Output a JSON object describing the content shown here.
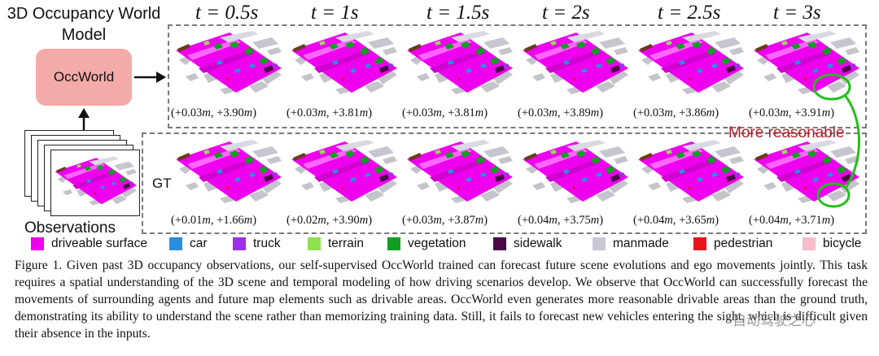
{
  "model": {
    "title": "3D Occupancy World Model",
    "box_label": "OccWorld"
  },
  "time_labels": [
    "t = 0.5s",
    "t = 1s",
    "t = 1.5s",
    "t = 2s",
    "t = 2.5s",
    "t = 3s"
  ],
  "prediction_coords": [
    {
      "x": "+0.03",
      "y": "+3.90"
    },
    {
      "x": "+0.03",
      "y": "+3.81"
    },
    {
      "x": "+0.03",
      "y": "+3.81"
    },
    {
      "x": "+0.03",
      "y": "+3.89"
    },
    {
      "x": "+0.03",
      "y": "+3.86"
    },
    {
      "x": "+0.03",
      "y": "+3.91"
    }
  ],
  "gt_coords": [
    {
      "x": "+0.01",
      "y": "+1.66"
    },
    {
      "x": "+0.02",
      "y": "+3.90"
    },
    {
      "x": "+0.03",
      "y": "+3.87"
    },
    {
      "x": "+0.04",
      "y": "+3.75"
    },
    {
      "x": "+0.04",
      "y": "+3.65"
    },
    {
      "x": "+0.04",
      "y": "+3.71"
    }
  ],
  "labels": {
    "gt": "GT",
    "observations": "Observations",
    "more_reasonable": "More reasonable",
    "unit": "m"
  },
  "legend": [
    {
      "label": "driveable surface",
      "color": "#ee00ee"
    },
    {
      "label": "car",
      "color": "#2a8fe0"
    },
    {
      "label": "truck",
      "color": "#9b30e8"
    },
    {
      "label": "terrain",
      "color": "#8fe050"
    },
    {
      "label": "vegetation",
      "color": "#10a020"
    },
    {
      "label": "sidewalk",
      "color": "#4a0a48"
    },
    {
      "label": "manmade",
      "color": "#c8c8d4"
    },
    {
      "label": "pedestrian",
      "color": "#e8141e"
    },
    {
      "label": "bicycle",
      "color": "#f6bcc8"
    }
  ],
  "caption": "Figure 1.   Given past 3D occupancy observations, our self-supervised OccWorld trained can forecast future scene evolutions and ego movements jointly. This task requires a spatial understanding of the 3D scene and temporal modeling of how driving scenarios develop. We observe that OccWorld can successfully forecast the movements of surrounding agents and future map elements such as drivable areas. OccWorld even generates more reasonable drivable areas than the ground truth, demonstrating its ability to understand the scene rather than memorizing training data. Still, it fails to forecast new vehicles entering the sight, which is difficult given their absence in the inputs.",
  "watermark": "自动驾驶之心",
  "colors": {
    "occ_box": "#f4aaa8",
    "highlight": "#22c018",
    "accent_text": "#b51a2a"
  }
}
